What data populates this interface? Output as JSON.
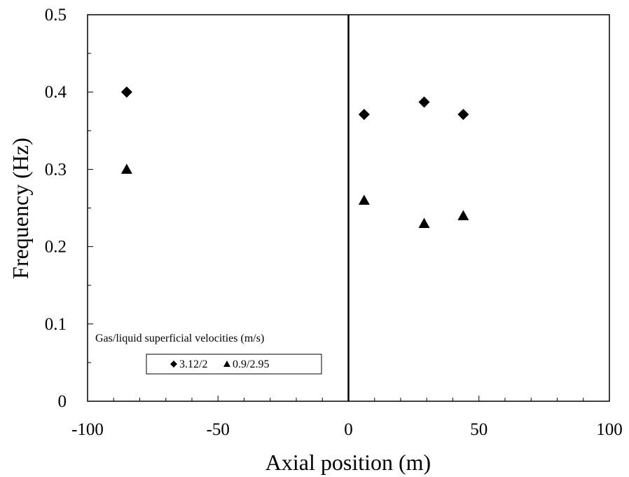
{
  "chart_data": {
    "type": "scatter",
    "title": "",
    "xlabel": "Axial position (m)",
    "ylabel": "Frequency (Hz)",
    "xlim": [
      -100,
      100
    ],
    "ylim": [
      0,
      0.5
    ],
    "x_major_ticks": [
      -100,
      -50,
      0,
      50,
      100
    ],
    "x_tick_labels": [
      "-100",
      "-50",
      "0",
      "50",
      "100"
    ],
    "y_major_ticks": [
      0,
      0.1,
      0.2,
      0.3,
      0.4,
      0.5
    ],
    "y_tick_labels": [
      "0",
      "0.1",
      "0.2",
      "0.3",
      "0.4",
      "0.5"
    ],
    "grid": false,
    "vertical_reference_line_x": 0,
    "legend": {
      "title": "Gas/liquid superficial velocities (m/s)",
      "placement": "bottom-left"
    },
    "series": [
      {
        "name": "3.12/2",
        "marker": "diamond",
        "color": "#000000",
        "x": [
          -85,
          6,
          29,
          44
        ],
        "y": [
          0.4,
          0.371,
          0.387,
          0.371
        ]
      },
      {
        "name": "0.9/2.95",
        "marker": "triangle",
        "color": "#000000",
        "x": [
          -85,
          6,
          29,
          44
        ],
        "y": [
          0.3,
          0.26,
          0.23,
          0.24
        ]
      }
    ]
  }
}
